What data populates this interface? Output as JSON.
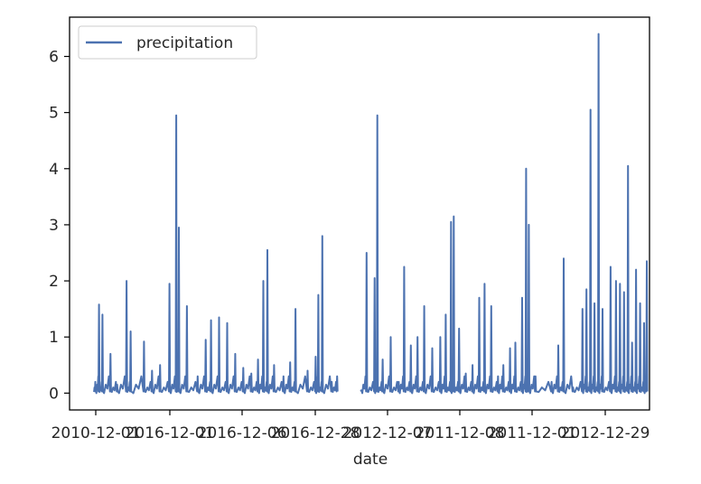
{
  "chart_data": {
    "type": "line",
    "title": "",
    "xlabel": "date",
    "ylabel": "",
    "x_tick_labels": [
      "2010-12-01",
      "2016-12-01",
      "2016-12-06",
      "2016-12-28",
      "2012-12-07",
      "2011-12-08",
      "2011-12-01",
      "2012-12-29"
    ],
    "ylim": [
      -0.3,
      6.7
    ],
    "y_ticks": [
      0,
      1,
      2,
      3,
      4,
      5,
      6
    ],
    "grid": false,
    "legend_position": "top-left",
    "color": "#4c72b0",
    "series": [
      {
        "name": "precipitation",
        "x_range": [
          0,
          2020
        ],
        "peaks": [
          [
            0,
            0.05
          ],
          [
            12,
            1.58
          ],
          [
            25,
            1.4
          ],
          [
            55,
            0.7
          ],
          [
            80,
            0.15
          ],
          [
            115,
            2.0
          ],
          [
            130,
            1.1
          ],
          [
            180,
            0.92
          ],
          [
            210,
            0.4
          ],
          [
            240,
            0.5
          ],
          [
            275,
            1.95
          ],
          [
            300,
            4.95
          ],
          [
            310,
            2.95
          ],
          [
            340,
            1.55
          ],
          [
            380,
            0.3
          ],
          [
            410,
            0.95
          ],
          [
            430,
            1.3
          ],
          [
            460,
            1.35
          ],
          [
            490,
            1.25
          ],
          [
            520,
            0.7
          ],
          [
            550,
            0.45
          ],
          [
            580,
            0.35
          ],
          [
            605,
            0.6
          ],
          [
            625,
            2.0
          ],
          [
            640,
            2.55
          ],
          [
            665,
            0.5
          ],
          [
            700,
            0.3
          ],
          [
            725,
            0.55
          ],
          [
            745,
            1.5
          ],
          [
            790,
            0.4
          ],
          [
            820,
            0.65
          ],
          [
            830,
            1.75
          ],
          [
            845,
            2.8
          ],
          [
            880,
            0.2
          ],
          [
            900,
            0.3
          ],
          [
            920,
            0.1
          ],
          [
            990,
            0.05
          ],
          [
            1010,
            2.5
          ],
          [
            1040,
            2.05
          ],
          [
            1050,
            4.95
          ],
          [
            1070,
            0.6
          ],
          [
            1100,
            1.0
          ],
          [
            1130,
            0.2
          ],
          [
            1150,
            2.25
          ],
          [
            1175,
            0.85
          ],
          [
            1200,
            1.0
          ],
          [
            1225,
            1.55
          ],
          [
            1255,
            0.8
          ],
          [
            1285,
            1.0
          ],
          [
            1305,
            1.4
          ],
          [
            1325,
            3.05
          ],
          [
            1335,
            3.15
          ],
          [
            1355,
            1.15
          ],
          [
            1380,
            0.35
          ],
          [
            1405,
            0.5
          ],
          [
            1430,
            1.7
          ],
          [
            1450,
            1.95
          ],
          [
            1475,
            1.55
          ],
          [
            1500,
            0.3
          ],
          [
            1520,
            0.5
          ],
          [
            1545,
            0.8
          ],
          [
            1565,
            0.9
          ],
          [
            1590,
            1.7
          ],
          [
            1605,
            4.0
          ],
          [
            1615,
            3.0
          ],
          [
            1640,
            0.3
          ],
          [
            1700,
            0.2
          ],
          [
            1725,
            0.85
          ],
          [
            1745,
            2.4
          ],
          [
            1780,
            0.1
          ],
          [
            1815,
            1.5
          ],
          [
            1830,
            1.85
          ],
          [
            1845,
            5.05
          ],
          [
            1860,
            1.6
          ],
          [
            1875,
            6.4
          ],
          [
            1890,
            1.5
          ],
          [
            1920,
            2.25
          ],
          [
            1940,
            2.0
          ],
          [
            1955,
            1.95
          ],
          [
            1970,
            1.8
          ],
          [
            1985,
            4.05
          ],
          [
            2000,
            0.9
          ],
          [
            2015,
            2.2
          ],
          [
            2030,
            1.6
          ],
          [
            2045,
            1.25
          ],
          [
            2055,
            2.35
          ]
        ],
        "gaps": [
          [
            910,
            990
          ]
        ]
      }
    ]
  }
}
